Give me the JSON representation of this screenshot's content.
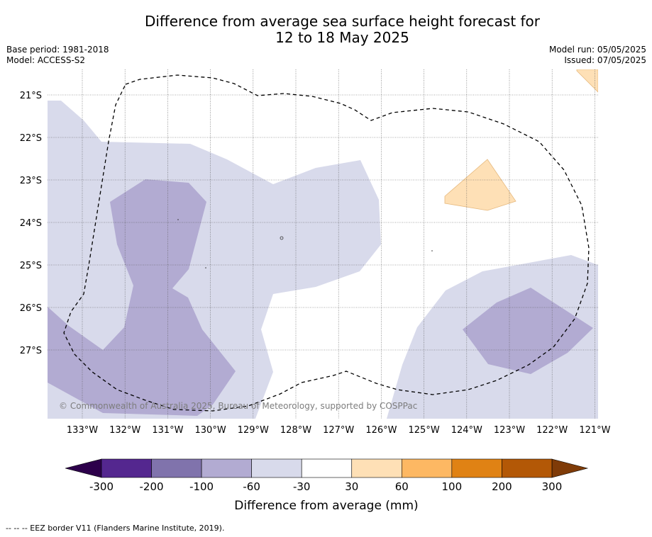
{
  "title_line1": "Difference from average sea surface height forecast for",
  "title_line2": "12 to 18 May 2025",
  "base_period": "Base period: 1981-2018",
  "model": "Model: ACCESS-S2",
  "model_run": "Model run: 05/05/2025",
  "issued": "Issued: 07/05/2025",
  "copyright": "© Commonwealth of Australia 2025, Bureau of Meteorology, supported by COSPPac",
  "lat_labels": [
    "21°S",
    "22°S",
    "23°S",
    "24°S",
    "25°S",
    "26°S",
    "27°S"
  ],
  "lon_labels": [
    "133°W",
    "132°W",
    "131°W",
    "130°W",
    "129°W",
    "128°W",
    "127°W",
    "126°W",
    "125°W",
    "124°W",
    "123°W",
    "122°W",
    "121°W"
  ],
  "colorbar": {
    "label": "Difference from average (mm)",
    "ticks": [
      "-300",
      "-200",
      "-100",
      "-60",
      "-30",
      "30",
      "60",
      "100",
      "200",
      "300"
    ],
    "colors": [
      "#54278f",
      "#8073ac",
      "#b2abd2",
      "#d8daeb",
      "#ffffff",
      "#fee0b6",
      "#fdb863",
      "#e08214",
      "#b35806"
    ],
    "under_color": "#2d004b",
    "over_color": "#7f3b08"
  },
  "footer": "--  --  -- EEZ border V11 (Flanders Marine Institute, 2019)."
}
